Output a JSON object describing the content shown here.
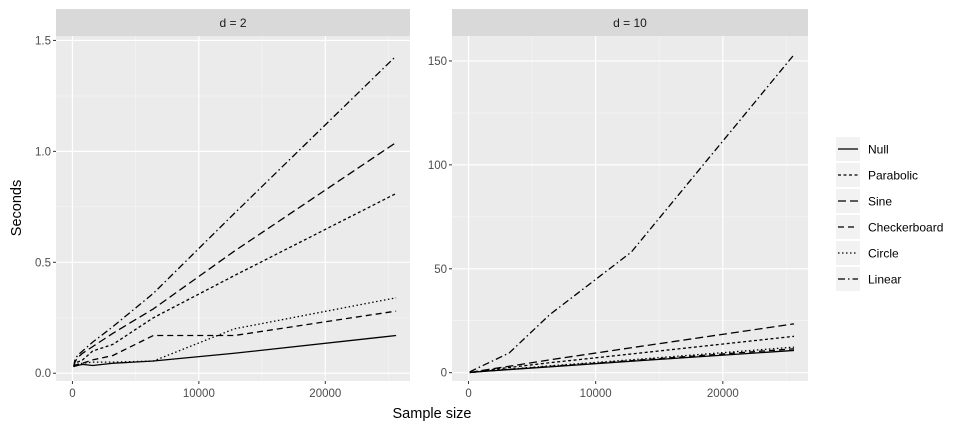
{
  "chart_data": {
    "type": "line",
    "xlabel": "Sample size",
    "ylabel": "Seconds",
    "grid": true,
    "legend_position": "right",
    "legend": [
      {
        "name": "Null",
        "dash": "solid"
      },
      {
        "name": "Parabolic",
        "dash": "dotted-short"
      },
      {
        "name": "Sine",
        "dash": "dashed-long"
      },
      {
        "name": "Checkerboard",
        "dash": "dashed"
      },
      {
        "name": "Circle",
        "dash": "dotted"
      },
      {
        "name": "Linear",
        "dash": "dashdot"
      }
    ],
    "panels": [
      {
        "strip": "d = 2",
        "xlim": [
          -1300,
          26700
        ],
        "ylim": [
          -0.035,
          1.52
        ],
        "x_ticks": [
          0,
          10000,
          20000
        ],
        "x_tick_labels": [
          "0",
          "10000",
          "20000"
        ],
        "y_ticks": [
          0,
          0.5,
          1.0,
          1.5
        ],
        "y_tick_labels": [
          "0.0",
          "0.5",
          "1.0",
          "1.5"
        ],
        "series": [
          {
            "name": "Null",
            "x": [
              100,
              200,
              400,
              800,
              1600,
              3200,
              6400,
              12800,
              25600
            ],
            "y": [
              0.03,
              0.032,
              0.035,
              0.04,
              0.035,
              0.045,
              0.055,
              0.09,
              0.17
            ]
          },
          {
            "name": "Parabolic",
            "x": [
              100,
              200,
              400,
              800,
              1600,
              3200,
              6400,
              12800,
              25600
            ],
            "y": [
              0.03,
              0.04,
              0.05,
              0.06,
              0.1,
              0.13,
              0.25,
              0.44,
              0.81
            ]
          },
          {
            "name": "Sine",
            "x": [
              100,
              200,
              400,
              800,
              1600,
              3200,
              6400,
              12800,
              25600
            ],
            "y": [
              0.03,
              0.05,
              0.07,
              0.09,
              0.12,
              0.18,
              0.29,
              0.55,
              1.04
            ]
          },
          {
            "name": "Checkerboard",
            "x": [
              100,
              200,
              400,
              800,
              1600,
              3200,
              6400,
              12800,
              25600
            ],
            "y": [
              0.03,
              0.035,
              0.04,
              0.045,
              0.06,
              0.08,
              0.17,
              0.17,
              0.28
            ]
          },
          {
            "name": "Circle",
            "x": [
              100,
              200,
              400,
              800,
              1600,
              3200,
              6400,
              12800,
              25600
            ],
            "y": [
              0.03,
              0.035,
              0.04,
              0.045,
              0.05,
              0.05,
              0.055,
              0.2,
              0.34
            ]
          },
          {
            "name": "Linear",
            "x": [
              100,
              200,
              400,
              800,
              1600,
              3200,
              6400,
              12800,
              25600
            ],
            "y": [
              0.03,
              0.06,
              0.08,
              0.1,
              0.14,
              0.21,
              0.36,
              0.72,
              1.43
            ]
          }
        ]
      },
      {
        "strip": "d = 10",
        "xlim": [
          -1300,
          26700
        ],
        "ylim": [
          -4,
          162
        ],
        "x_ticks": [
          0,
          10000,
          20000
        ],
        "x_tick_labels": [
          "0",
          "10000",
          "20000"
        ],
        "y_ticks": [
          0,
          50,
          100,
          150
        ],
        "y_tick_labels": [
          "0",
          "50",
          "100",
          "150"
        ],
        "series": [
          {
            "name": "Null",
            "x": [
              100,
              200,
              400,
              800,
              1600,
              3200,
              6400,
              12800,
              25600
            ],
            "y": [
              0.1,
              0.15,
              0.25,
              0.45,
              0.8,
              1.5,
              2.8,
              5.5,
              10.7
            ]
          },
          {
            "name": "Parabolic",
            "x": [
              100,
              200,
              400,
              800,
              1600,
              3200,
              6400,
              12800,
              25600
            ],
            "y": [
              0.1,
              0.2,
              0.35,
              0.7,
              1.3,
              2.5,
              4.8,
              9.0,
              17.5
            ]
          },
          {
            "name": "Sine",
            "x": [
              100,
              200,
              400,
              800,
              1600,
              3200,
              6400,
              12800,
              25600
            ],
            "y": [
              0.1,
              0.2,
              0.4,
              0.8,
              1.6,
              3.1,
              6.2,
              12.0,
              23.5
            ]
          },
          {
            "name": "Checkerboard",
            "x": [
              100,
              200,
              400,
              800,
              1600,
              3200,
              6400,
              12800,
              25600
            ],
            "y": [
              0.1,
              0.15,
              0.25,
              0.45,
              0.85,
              1.6,
              3.0,
              5.8,
              11.5
            ]
          },
          {
            "name": "Circle",
            "x": [
              100,
              200,
              400,
              800,
              1600,
              3200,
              6400,
              12800,
              25600
            ],
            "y": [
              0.1,
              0.15,
              0.3,
              0.5,
              0.9,
              1.7,
              3.3,
              6.2,
              12.3
            ]
          },
          {
            "name": "Linear",
            "x": [
              100,
              200,
              400,
              800,
              1600,
              3200,
              6400,
              12800,
              25600
            ],
            "y": [
              0.3,
              0.7,
              1.3,
              2.5,
              4.8,
              9.5,
              28.0,
              58.0,
              153.0
            ]
          }
        ]
      }
    ]
  }
}
